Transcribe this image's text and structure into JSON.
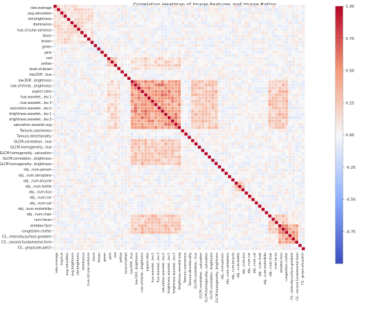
{
  "chart_data": {
    "type": "heatmap",
    "title": "Correlation Heatmap of Image Features and Image Rating",
    "xlabel": "",
    "ylabel": "",
    "matrix_size": 75,
    "value_range": [
      -1,
      1
    ],
    "colormap": "diverging blue-white-red (coolwarm)",
    "y_tick_labels": [
      "rate.everage",
      "avg.saturation",
      "std.brightness",
      "dominance",
      "hue.circular.variance",
      "black",
      "brown",
      "green",
      "pink",
      "red",
      "yellow",
      "level.of.detail",
      "low.DOF...hue",
      "low.DOF...brightness",
      "rule.of.thirds...brightness",
      "aspect.ratio",
      "hue.wavelet...lev.1",
      "...hue.wavelet...lev.3",
      "saturation.wavelet...lev.2",
      "brightness.wavelet...lev.1",
      "brightness.wavelet...lev.3",
      "saturation.wavelet.avg",
      "Tamura.coarseness",
      "Tamura.directionality",
      "GLCM.correlation...hue",
      "GLCM.homogeneity...hue",
      "GLCM.homogeneity...saturation",
      "GLCM.correlation...brightness",
      "GLCM.homogeneity...brightness",
      "obj...num.person",
      "obj...num.aeroplane",
      "obj...num.bicycle",
      "obj...num.bottle",
      "obj...num.bus",
      "obj...num.car",
      "obj...num.cat",
      "obj...num.motorbike",
      "obj...num.chair",
      "num.faces",
      "areabox.face",
      "congestion.clutter",
      "CS...intensity.surface.gradient",
      "CS...second.fundamental.form",
      "CS...grayscale.patch"
    ],
    "x_tick_labels": [
      "rate.everage",
      "avg.hue",
      "avg.saturation",
      "avg.brightness",
      "std.brightness",
      "dominance",
      "hue.circular.variance",
      "black",
      "brown",
      "green",
      "pink",
      "red",
      "yellow",
      "level.of.detail",
      "low.DOF...hue",
      "low.DOF...brightness",
      "rule.of.thirds...brightness",
      "aspect.ratio",
      "hue.wavelet...lev.1",
      "hue.wavelet...lev.3",
      "saturation.wavelet...lev.2",
      "brightness.wavelet...lev.1",
      "brightness.wavelet...lev.3",
      "brightness.wavelet.avg",
      "Tamura.coarseness",
      "Tamura.directionality",
      "GLCM.correlation...hue",
      "GLCM.correlation...saturation",
      "GLCM.homogeneity...saturation",
      "GLCM.correlation...brightness",
      "GLCM.homogeneity...brightness",
      "obj...num.person",
      "obj...num.aeroplane",
      "obj...num.bicycle",
      "obj...num.bottle",
      "obj...num.bus",
      "obj...num.car",
      "obj...num.cat",
      "obj...num.chair",
      "obj...num.motorbike",
      "obj...num.chair",
      "num.faces",
      "areabox.face",
      "congestion.clutter",
      "CS...intensity.surface.gradient",
      "CS...second.fundamental.form",
      "CS...grayscale.patch"
    ],
    "colorbar_ticks": [
      1.0,
      0.75,
      0.5,
      0.25,
      0.0,
      -0.25,
      -0.5,
      -0.75
    ],
    "blocks": [
      {
        "rows": [
          0,
          11
        ],
        "cols": [
          0,
          11
        ],
        "value": 0.15
      },
      {
        "rows": [
          16,
          18
        ],
        "cols": [
          16,
          18
        ],
        "value": 0.35
      },
      {
        "rows": [
          23,
          37
        ],
        "cols": [
          23,
          37
        ],
        "value": 0.55
      },
      {
        "rows": [
          23,
          37
        ],
        "cols": [
          41,
          48
        ],
        "value": 0.3
      },
      {
        "rows": [
          41,
          48
        ],
        "cols": [
          23,
          37
        ],
        "value": 0.3
      },
      {
        "rows": [
          23,
          37
        ],
        "cols": [
          64,
          69
        ],
        "value": 0.3
      },
      {
        "rows": [
          64,
          69
        ],
        "cols": [
          23,
          37
        ],
        "value": 0.3
      },
      {
        "rows": [
          16,
          19
        ],
        "cols": [
          23,
          37
        ],
        "value": 0.2
      },
      {
        "rows": [
          23,
          37
        ],
        "cols": [
          16,
          19
        ],
        "value": 0.2
      },
      {
        "rows": [
          67,
          72
        ],
        "cols": [
          67,
          72
        ],
        "value": 0.45
      },
      {
        "rows": [
          64,
          69
        ],
        "cols": [
          64,
          69
        ],
        "value": 0.25
      },
      {
        "rows": [
          54,
          56
        ],
        "cols": [
          54,
          56
        ],
        "value": 0.4
      }
    ]
  }
}
